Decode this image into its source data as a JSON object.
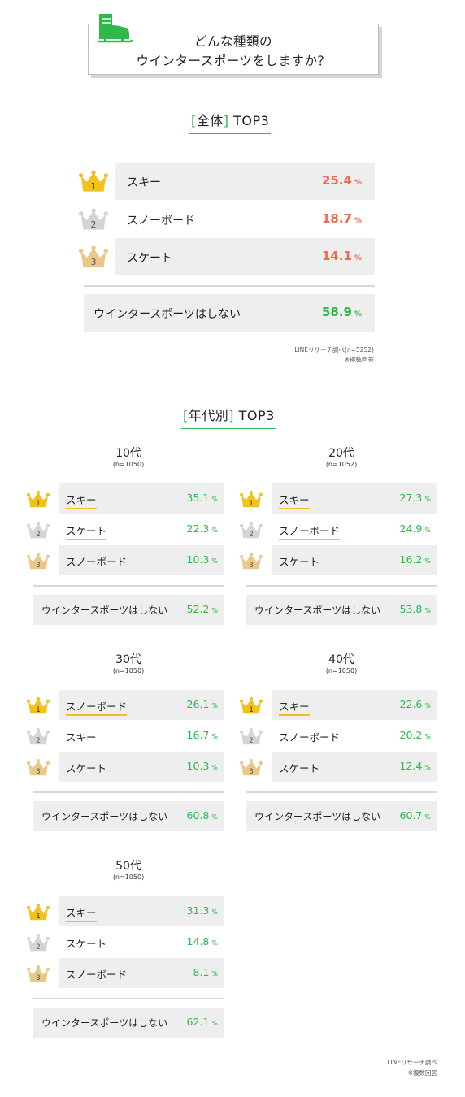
{
  "title": {
    "line1": "どんな種類の",
    "line2": "ウインタースポーツをしますか？"
  },
  "icons": {
    "title": "ice-skate-icon",
    "rank1": "gold-crown-icon",
    "rank2": "silver-crown-icon",
    "rank3": "bronze-crown-icon"
  },
  "colors": {
    "accent_green": "#2fb94b",
    "overall_value": "#ee6a4f",
    "gold": "#f2c21b",
    "silver": "#d4d4d4",
    "bronze": "#e9c889",
    "row_bg": "#eeeeee"
  },
  "overall": {
    "heading_open": "[",
    "heading_word": "全体",
    "heading_close": "]",
    "heading_rest": "TOP3",
    "rows": [
      {
        "rank": "1",
        "label": "スキー",
        "value": "25.4",
        "unit": "%"
      },
      {
        "rank": "2",
        "label": "スノーボード",
        "value": "18.7",
        "unit": "%"
      },
      {
        "rank": "3",
        "label": "スケート",
        "value": "14.1",
        "unit": "%"
      }
    ],
    "none": {
      "label": "ウインタースポーツはしない",
      "value": "58.9",
      "unit": "%"
    },
    "source": "LINEリサーチ調べ(n=5252)",
    "note": "※複数回答"
  },
  "by_age": {
    "heading_open": "[",
    "heading_word": "年代別",
    "heading_close": "]",
    "heading_rest": "TOP3",
    "groups": [
      {
        "title": "10代",
        "n": "(n=1050)",
        "rows": [
          {
            "rank": "1",
            "label": "スキー",
            "value": "35.1",
            "unit": "%"
          },
          {
            "rank": "2",
            "label": "スケート",
            "value": "22.3",
            "unit": "%"
          },
          {
            "rank": "3",
            "label": "スノーボード",
            "value": "10.3",
            "unit": "%"
          }
        ],
        "none": {
          "label": "ウインタースポーツはしない",
          "value": "52.2",
          "unit": "%"
        }
      },
      {
        "title": "20代",
        "n": "(n=1052)",
        "rows": [
          {
            "rank": "1",
            "label": "スキー",
            "value": "27.3",
            "unit": "%"
          },
          {
            "rank": "2",
            "label": "スノーボード",
            "value": "24.9",
            "unit": "%"
          },
          {
            "rank": "3",
            "label": "スケート",
            "value": "16.2",
            "unit": "%"
          }
        ],
        "none": {
          "label": "ウインタースポーツはしない",
          "value": "53.8",
          "unit": "%"
        }
      },
      {
        "title": "30代",
        "n": "(n=1050)",
        "rows": [
          {
            "rank": "1",
            "label": "スノーボード",
            "value": "26.1",
            "unit": "%"
          },
          {
            "rank": "2",
            "label": "スキー",
            "value": "16.7",
            "unit": "%"
          },
          {
            "rank": "3",
            "label": "スケート",
            "value": "10.3",
            "unit": "%"
          }
        ],
        "none": {
          "label": "ウインタースポーツはしない",
          "value": "60.8",
          "unit": "%"
        }
      },
      {
        "title": "40代",
        "n": "(n=1050)",
        "rows": [
          {
            "rank": "1",
            "label": "スキー",
            "value": "22.6",
            "unit": "%"
          },
          {
            "rank": "2",
            "label": "スノーボード",
            "value": "20.2",
            "unit": "%"
          },
          {
            "rank": "3",
            "label": "スケート",
            "value": "12.4",
            "unit": "%"
          }
        ],
        "none": {
          "label": "ウインタースポーツはしない",
          "value": "60.7",
          "unit": "%"
        }
      },
      {
        "title": "50代",
        "n": "(n=1050)",
        "rows": [
          {
            "rank": "1",
            "label": "スキー",
            "value": "31.3",
            "unit": "%"
          },
          {
            "rank": "2",
            "label": "スケート",
            "value": "14.8",
            "unit": "%"
          },
          {
            "rank": "3",
            "label": "スノーボード",
            "value": "8.1",
            "unit": "%"
          }
        ],
        "none": {
          "label": "ウインタースポーツはしない",
          "value": "62.1",
          "unit": "%"
        }
      }
    ],
    "source": "LINEリサーチ調べ",
    "note": "※複数回答"
  },
  "chart_data": [
    {
      "type": "table",
      "title": "[全体] TOP3",
      "categories": [
        "スキー",
        "スノーボード",
        "スケート",
        "ウインタースポーツはしない"
      ],
      "values": [
        25.4,
        18.7,
        14.1,
        58.9
      ],
      "unit": "%"
    },
    {
      "type": "table",
      "title": "10代",
      "categories": [
        "スキー",
        "スケート",
        "スノーボード",
        "ウインタースポーツはしない"
      ],
      "values": [
        35.1,
        22.3,
        10.3,
        52.2
      ],
      "unit": "%"
    },
    {
      "type": "table",
      "title": "20代",
      "categories": [
        "スキー",
        "スノーボード",
        "スケート",
        "ウインタースポーツはしない"
      ],
      "values": [
        27.3,
        24.9,
        16.2,
        53.8
      ],
      "unit": "%"
    },
    {
      "type": "table",
      "title": "30代",
      "categories": [
        "スノーボード",
        "スキー",
        "スケート",
        "ウインタースポーツはしない"
      ],
      "values": [
        26.1,
        16.7,
        10.3,
        60.8
      ],
      "unit": "%"
    },
    {
      "type": "table",
      "title": "40代",
      "categories": [
        "スキー",
        "スノーボード",
        "スケート",
        "ウインタースポーツはしない"
      ],
      "values": [
        22.6,
        20.2,
        12.4,
        60.7
      ],
      "unit": "%"
    },
    {
      "type": "table",
      "title": "50代",
      "categories": [
        "スキー",
        "スケート",
        "スノーボード",
        "ウインタースポーツはしない"
      ],
      "values": [
        31.3,
        14.8,
        8.1,
        62.1
      ],
      "unit": "%"
    }
  ]
}
